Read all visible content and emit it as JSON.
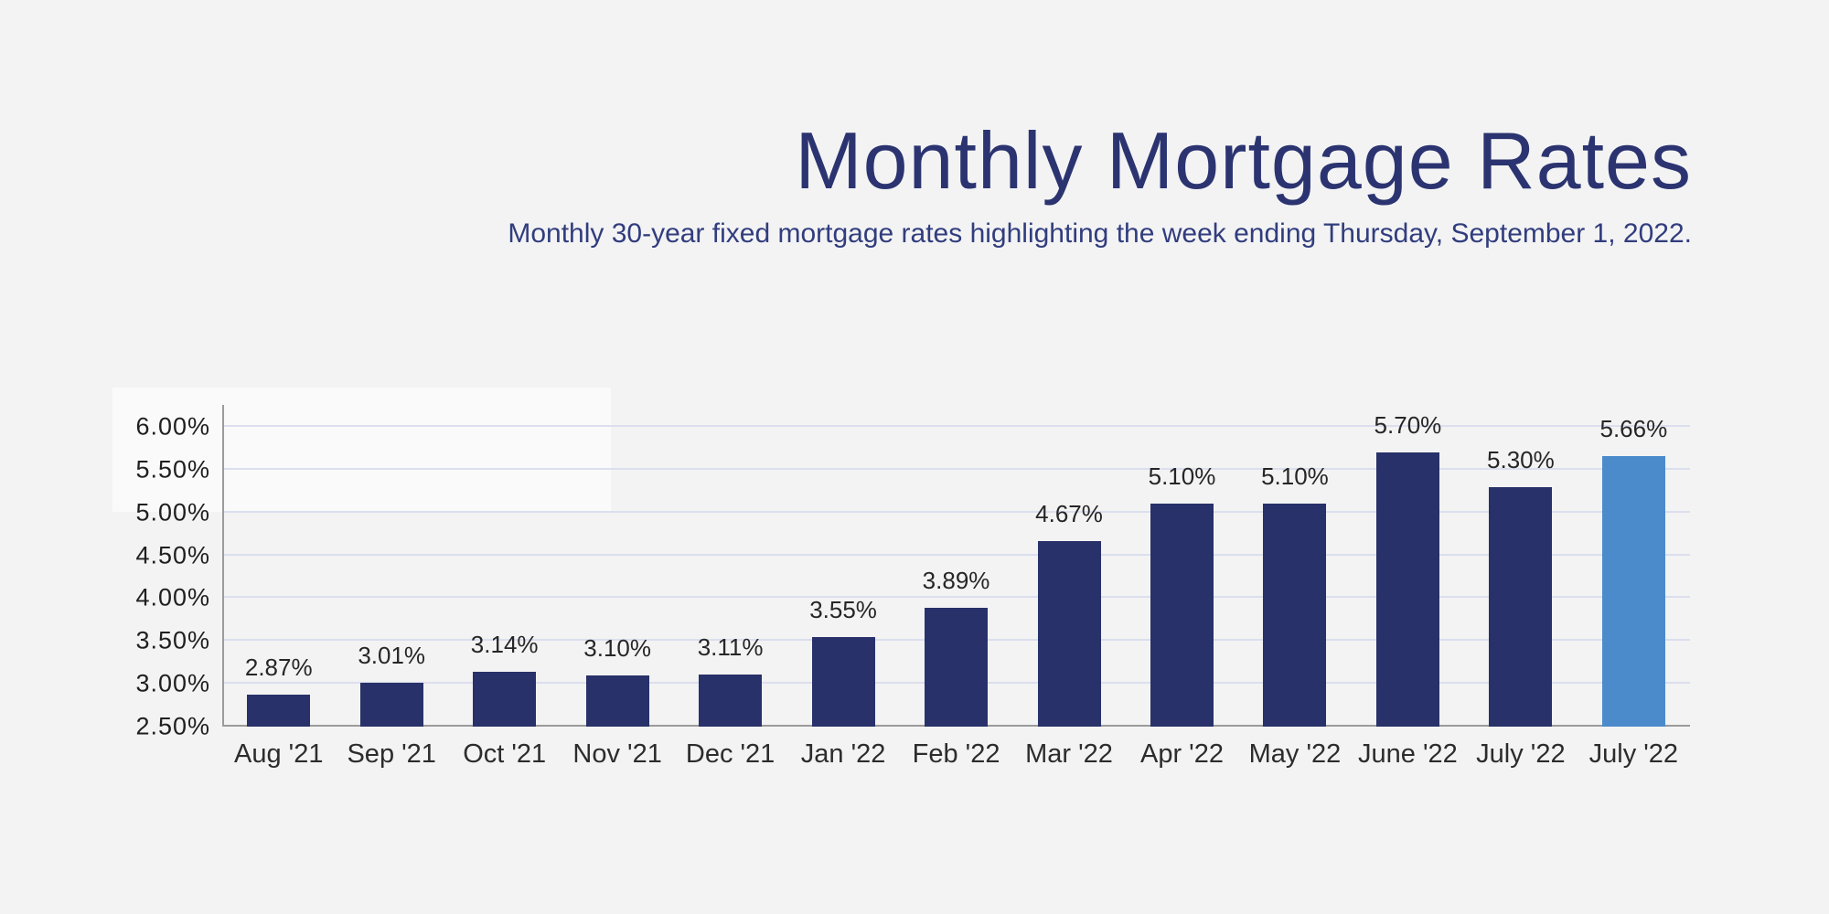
{
  "header": {
    "title": "Monthly Mortgage Rates",
    "subtitle": "Monthly 30-year fixed mortgage rates highlighting the week ending Thursday, September 1, 2022."
  },
  "chart_data": {
    "type": "bar",
    "title": "Monthly Mortgage Rates",
    "xlabel": "",
    "ylabel": "",
    "categories": [
      "Aug '21",
      "Sep '21",
      "Oct '21",
      "Nov '21",
      "Dec '21",
      "Jan '22",
      "Feb '22",
      "Mar '22",
      "Apr '22",
      "May '22",
      "June '22",
      "July '22",
      "July '22"
    ],
    "values": [
      2.87,
      3.01,
      3.14,
      3.1,
      3.11,
      3.55,
      3.89,
      4.67,
      5.1,
      5.1,
      5.7,
      5.3,
      5.66
    ],
    "value_labels": [
      "2.87%",
      "3.01%",
      "3.14%",
      "3.10%",
      "3.11%",
      "3.55%",
      "3.89%",
      "4.67%",
      "5.10%",
      "5.10%",
      "5.70%",
      "5.30%",
      "5.66%"
    ],
    "ylim": [
      2.5,
      6.0
    ],
    "ytick_step": 0.5,
    "ytick_labels": [
      "2.50%",
      "3.00%",
      "3.50%",
      "4.00%",
      "4.50%",
      "5.00%",
      "5.50%",
      "6.00%"
    ],
    "grid": "horizontal",
    "legend": "none",
    "bar_color": "#283169",
    "highlight_color": "#4b8bcc",
    "highlight_index": 12
  },
  "colors": {
    "background": "#f3f3f4",
    "title_text": "#2b3470",
    "subtitle_text": "#313d7d",
    "gridline": "#dbdfed",
    "axis_line": "#9b9b9b",
    "tick_text": "#1f1f1f"
  }
}
